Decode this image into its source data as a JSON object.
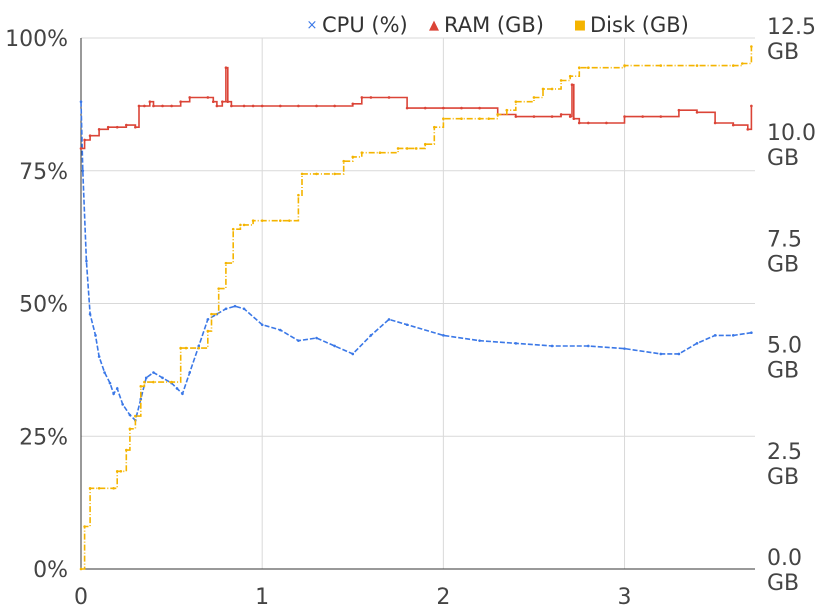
{
  "chart_data": {
    "type": "line",
    "title": "",
    "xlabel": "",
    "ylabel": "",
    "grid": true,
    "legend_position": "top",
    "x_axis": {
      "range": [
        0,
        3.72
      ],
      "ticks": [
        0,
        1,
        2,
        3
      ],
      "tick_labels": [
        "0",
        "1",
        "2",
        "3"
      ]
    },
    "y_axis_left": {
      "range": [
        0,
        100
      ],
      "ticks": [
        0,
        25,
        50,
        75,
        100
      ],
      "tick_labels": [
        "0%",
        "25%",
        "50%",
        "75%",
        "100%"
      ]
    },
    "y_axis_right": {
      "range": [
        0,
        12.5
      ],
      "ticks": [
        0,
        2.5,
        5,
        7.5,
        10,
        12.5
      ],
      "tick_values": [
        "0.0",
        "2.5",
        "5.0",
        "7.5",
        "10.0",
        "12.5"
      ],
      "tick_unit": "GB"
    },
    "series": [
      {
        "name": "CPU (%)",
        "axis": "left",
        "color": "#3b78e7",
        "marker": "×",
        "x": [
          0,
          0.01,
          0.03,
          0.05,
          0.08,
          0.1,
          0.13,
          0.16,
          0.18,
          0.2,
          0.23,
          0.27,
          0.3,
          0.33,
          0.36,
          0.4,
          0.45,
          0.5,
          0.53,
          0.56,
          0.6,
          0.65,
          0.7,
          0.75,
          0.8,
          0.85,
          0.9,
          1.0,
          1.1,
          1.2,
          1.3,
          1.4,
          1.5,
          1.6,
          1.7,
          1.8,
          2.0,
          2.2,
          2.4,
          2.6,
          2.8,
          3.0,
          3.2,
          3.3,
          3.4,
          3.5,
          3.6,
          3.7
        ],
        "y": [
          88,
          75,
          58,
          48,
          44,
          40,
          37,
          35,
          33,
          34,
          31,
          29,
          28,
          32,
          36,
          37,
          36,
          35,
          34,
          33,
          37,
          42,
          47,
          48,
          49,
          49.5,
          49,
          46,
          45,
          43,
          43.5,
          42,
          40.5,
          44,
          47,
          46,
          44,
          43,
          42.5,
          42,
          42,
          41.5,
          40.5,
          40.5,
          42.5,
          44,
          44,
          44.5
        ]
      },
      {
        "name": "RAM (GB)",
        "axis": "right",
        "color": "#db4437",
        "marker": "▲",
        "x": [
          0,
          0.02,
          0.05,
          0.1,
          0.15,
          0.2,
          0.25,
          0.3,
          0.32,
          0.35,
          0.38,
          0.4,
          0.45,
          0.5,
          0.55,
          0.6,
          0.7,
          0.73,
          0.75,
          0.78,
          0.8,
          0.81,
          0.83,
          0.9,
          0.95,
          1.0,
          1.1,
          1.2,
          1.3,
          1.4,
          1.5,
          1.55,
          1.6,
          1.7,
          1.8,
          1.9,
          2.0,
          2.1,
          2.2,
          2.3,
          2.4,
          2.5,
          2.6,
          2.65,
          2.7,
          2.71,
          2.72,
          2.75,
          2.8,
          2.9,
          3.0,
          3.1,
          3.2,
          3.3,
          3.4,
          3.5,
          3.6,
          3.68,
          3.7
        ],
        "y": [
          9.9,
          10.1,
          10.2,
          10.35,
          10.4,
          10.4,
          10.45,
          10.4,
          10.9,
          10.9,
          11.0,
          10.9,
          10.9,
          10.9,
          11.0,
          11.1,
          11.1,
          11.0,
          10.9,
          11.0,
          11.8,
          11.0,
          10.9,
          10.9,
          10.9,
          10.9,
          10.9,
          10.9,
          10.9,
          10.9,
          10.95,
          11.1,
          11.1,
          11.1,
          10.85,
          10.85,
          10.85,
          10.85,
          10.85,
          10.7,
          10.65,
          10.65,
          10.65,
          10.7,
          10.65,
          11.4,
          10.6,
          10.5,
          10.5,
          10.5,
          10.65,
          10.65,
          10.65,
          10.8,
          10.75,
          10.5,
          10.45,
          10.35,
          10.9
        ]
      },
      {
        "name": "Disk (GB)",
        "axis": "right",
        "color": "#f4b400",
        "marker": "■",
        "x": [
          0,
          0.02,
          0.05,
          0.1,
          0.18,
          0.2,
          0.22,
          0.25,
          0.27,
          0.3,
          0.33,
          0.35,
          0.4,
          0.5,
          0.55,
          0.58,
          0.65,
          0.7,
          0.72,
          0.76,
          0.8,
          0.84,
          0.88,
          0.9,
          0.95,
          1.0,
          1.1,
          1.15,
          1.2,
          1.22,
          1.3,
          1.4,
          1.45,
          1.5,
          1.55,
          1.65,
          1.75,
          1.8,
          1.85,
          1.9,
          1.95,
          2.0,
          2.1,
          2.2,
          2.25,
          2.3,
          2.35,
          2.4,
          2.5,
          2.55,
          2.6,
          2.65,
          2.7,
          2.75,
          2.8,
          3.0,
          3.2,
          3.4,
          3.6,
          3.65,
          3.7
        ],
        "y": [
          0,
          1.0,
          1.9,
          1.9,
          1.9,
          2.3,
          2.3,
          2.8,
          3.3,
          3.6,
          4.3,
          4.4,
          4.4,
          4.4,
          5.2,
          5.2,
          5.2,
          5.6,
          6.0,
          6.6,
          7.2,
          8.0,
          8.1,
          8.1,
          8.2,
          8.2,
          8.2,
          8.2,
          8.8,
          9.3,
          9.3,
          9.3,
          9.6,
          9.7,
          9.8,
          9.8,
          9.9,
          9.9,
          9.9,
          10.0,
          10.4,
          10.6,
          10.6,
          10.6,
          10.6,
          10.7,
          10.8,
          11.0,
          11.1,
          11.3,
          11.3,
          11.5,
          11.6,
          11.8,
          11.8,
          11.85,
          11.85,
          11.85,
          11.85,
          11.9,
          12.3
        ]
      }
    ]
  }
}
